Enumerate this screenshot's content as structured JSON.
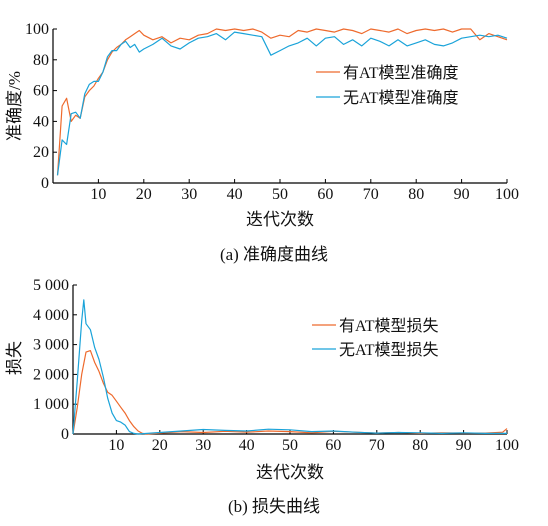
{
  "colors": {
    "with_at": "#ee6a2d",
    "without_at": "#1aa3d9"
  },
  "chart_data": [
    {
      "type": "line",
      "caption": "(a) 准确度曲线",
      "xlabel": "迭代次数",
      "ylabel": "准确度/%",
      "xlim": [
        0,
        100
      ],
      "ylim": [
        0,
        100
      ],
      "xticks": [
        10,
        20,
        30,
        40,
        50,
        60,
        70,
        80,
        90,
        100
      ],
      "yticks": [
        0,
        20,
        40,
        60,
        80,
        100
      ],
      "ytick_labels": [
        "0",
        "20",
        "40",
        "60",
        "80",
        "100"
      ],
      "legend_position": "center-right",
      "series": [
        {
          "name": "有AT模型准确度",
          "x": [
            1,
            2,
            3,
            4,
            5,
            6,
            7,
            8,
            9,
            10,
            11,
            12,
            13,
            14,
            15,
            16,
            17,
            18,
            19,
            20,
            22,
            24,
            26,
            28,
            30,
            32,
            34,
            36,
            38,
            40,
            42,
            44,
            46,
            48,
            50,
            52,
            54,
            56,
            58,
            60,
            62,
            64,
            66,
            68,
            70,
            72,
            74,
            76,
            78,
            80,
            82,
            84,
            86,
            88,
            90,
            92,
            94,
            96,
            98,
            100
          ],
          "y": [
            5,
            50,
            55,
            40,
            44,
            42,
            56,
            60,
            63,
            68,
            72,
            80,
            85,
            88,
            90,
            93,
            95,
            97,
            99,
            96,
            93,
            95,
            91,
            94,
            93,
            96,
            97,
            100,
            99,
            100,
            99,
            100,
            98,
            94,
            96,
            95,
            99,
            98,
            100,
            99,
            98,
            100,
            99,
            97,
            100,
            99,
            98,
            100,
            97,
            99,
            100,
            99,
            100,
            98,
            100,
            100,
            93,
            97,
            95,
            93
          ]
        },
        {
          "name": "无AT模型准确度",
          "x": [
            1,
            2,
            3,
            4,
            5,
            6,
            7,
            8,
            9,
            10,
            11,
            12,
            13,
            14,
            15,
            16,
            17,
            18,
            19,
            20,
            22,
            24,
            26,
            28,
            30,
            32,
            34,
            36,
            38,
            40,
            42,
            44,
            46,
            48,
            50,
            52,
            54,
            56,
            58,
            60,
            62,
            64,
            66,
            68,
            70,
            72,
            74,
            76,
            78,
            80,
            82,
            84,
            86,
            88,
            90,
            92,
            94,
            96,
            98,
            100
          ],
          "y": [
            5,
            28,
            25,
            45,
            46,
            42,
            58,
            64,
            66,
            66,
            72,
            82,
            86,
            86,
            90,
            92,
            88,
            90,
            85,
            87,
            90,
            94,
            89,
            87,
            91,
            94,
            95,
            97,
            93,
            98,
            97,
            96,
            95,
            83,
            86,
            89,
            91,
            94,
            89,
            94,
            95,
            90,
            93,
            89,
            94,
            92,
            89,
            93,
            89,
            91,
            93,
            90,
            89,
            91,
            94,
            95,
            96,
            95,
            96,
            94
          ]
        }
      ]
    },
    {
      "type": "line",
      "caption": "(b) 损失曲线",
      "xlabel": "迭代次数",
      "ylabel": "损失",
      "xlim": [
        0,
        100
      ],
      "ylim": [
        0,
        5000
      ],
      "xticks": [
        10,
        20,
        30,
        40,
        50,
        60,
        70,
        80,
        90,
        100
      ],
      "yticks": [
        0,
        1000,
        2000,
        3000,
        4000,
        5000
      ],
      "ytick_labels": [
        "0",
        "1 000",
        "2 000",
        "3 000",
        "4 000",
        "5 000"
      ],
      "legend_position": "center-right",
      "series": [
        {
          "name": "有AT模型损失",
          "x": [
            0,
            1,
            2,
            3,
            4,
            5,
            6,
            7,
            8,
            9,
            10,
            11,
            12,
            13,
            14,
            15,
            16,
            17,
            20,
            25,
            30,
            35,
            40,
            45,
            50,
            55,
            60,
            65,
            70,
            75,
            80,
            85,
            90,
            95,
            99,
            100
          ],
          "y": [
            0,
            900,
            2000,
            2750,
            2800,
            2400,
            2100,
            1700,
            1400,
            1300,
            1100,
            900,
            700,
            450,
            250,
            100,
            20,
            0,
            30,
            80,
            50,
            90,
            60,
            100,
            80,
            40,
            90,
            60,
            30,
            50,
            20,
            40,
            30,
            30,
            60,
            180
          ]
        },
        {
          "name": "无AT模型损失",
          "x": [
            0,
            1,
            2,
            2.5,
            3,
            4,
            5,
            6,
            7,
            8,
            9,
            10,
            11,
            12,
            13,
            14,
            15,
            20,
            25,
            30,
            35,
            40,
            45,
            50,
            55,
            60,
            65,
            70,
            75,
            80,
            85,
            90,
            95,
            100
          ],
          "y": [
            0,
            1800,
            3800,
            4500,
            3700,
            3500,
            2900,
            2500,
            1900,
            1200,
            700,
            450,
            400,
            300,
            80,
            20,
            0,
            50,
            100,
            150,
            120,
            100,
            160,
            140,
            80,
            100,
            60,
            30,
            50,
            40,
            20,
            40,
            20,
            20
          ]
        }
      ]
    }
  ]
}
